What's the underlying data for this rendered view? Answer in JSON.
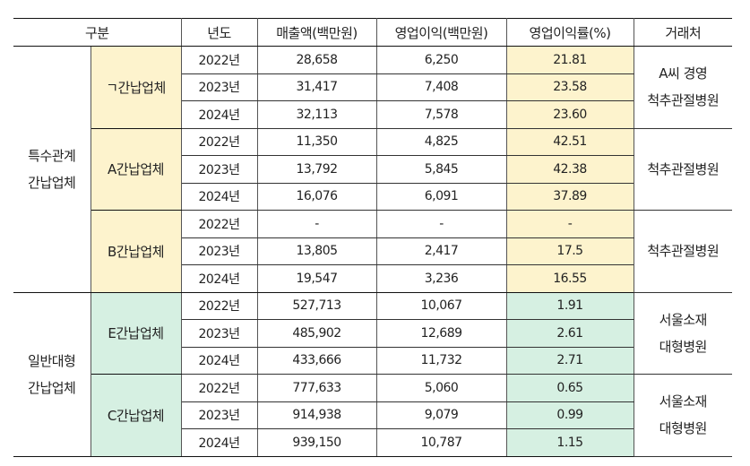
{
  "headers": {
    "category": "구분",
    "year": "년도",
    "sales": "매출액(백만원)",
    "profit": "영업이익(백만원)",
    "margin": "영업이익률(%)",
    "client": "거래처"
  },
  "colors": {
    "special": "#fdf3cd",
    "general": "#d6f0e2"
  },
  "groups": [
    {
      "label_lines": [
        "특수관계",
        "간납업체"
      ],
      "theme": "yellow",
      "companies": [
        {
          "name": "ㄱ간납업체",
          "client_lines": [
            "A씨 경영",
            "척추관절병원"
          ],
          "rows": [
            {
              "year": "2022년",
              "sales": "28,658",
              "profit": "6,250",
              "margin": "21.81"
            },
            {
              "year": "2023년",
              "sales": "31,417",
              "profit": "7,408",
              "margin": "23.58"
            },
            {
              "year": "2024년",
              "sales": "32,113",
              "profit": "7,578",
              "margin": "23.60"
            }
          ]
        },
        {
          "name": "A간납업체",
          "client_lines": [
            "척추관절병원"
          ],
          "rows": [
            {
              "year": "2022년",
              "sales": "11,350",
              "profit": "4,825",
              "margin": "42.51"
            },
            {
              "year": "2023년",
              "sales": "13,792",
              "profit": "5,845",
              "margin": "42.38"
            },
            {
              "year": "2024년",
              "sales": "16,076",
              "profit": "6,091",
              "margin": "37.89"
            }
          ]
        },
        {
          "name": "B간납업체",
          "client_lines": [
            "척추관절병원"
          ],
          "rows": [
            {
              "year": "2022년",
              "sales": "-",
              "profit": "-",
              "margin": "-"
            },
            {
              "year": "2023년",
              "sales": "13,805",
              "profit": "2,417",
              "margin": "17.5"
            },
            {
              "year": "2024년",
              "sales": "19,547",
              "profit": "3,236",
              "margin": "16.55"
            }
          ]
        }
      ]
    },
    {
      "label_lines": [
        "일반대형",
        "간납업체"
      ],
      "theme": "green",
      "companies": [
        {
          "name": "E간납업체",
          "client_lines": [
            "서울소재",
            "대형병원"
          ],
          "rows": [
            {
              "year": "2022년",
              "sales": "527,713",
              "profit": "10,067",
              "margin": "1.91"
            },
            {
              "year": "2023년",
              "sales": "485,902",
              "profit": "12,689",
              "margin": "2.61"
            },
            {
              "year": "2024년",
              "sales": "433,666",
              "profit": "11,732",
              "margin": "2.71"
            }
          ]
        },
        {
          "name": "C간납업체",
          "client_lines": [
            "서울소재",
            "대형병원"
          ],
          "rows": [
            {
              "year": "2022년",
              "sales": "777,633",
              "profit": "5,060",
              "margin": "0.65"
            },
            {
              "year": "2023년",
              "sales": "914,938",
              "profit": "9,079",
              "margin": "0.99"
            },
            {
              "year": "2024년",
              "sales": "939,150",
              "profit": "10,787",
              "margin": "1.15"
            }
          ]
        }
      ]
    }
  ]
}
